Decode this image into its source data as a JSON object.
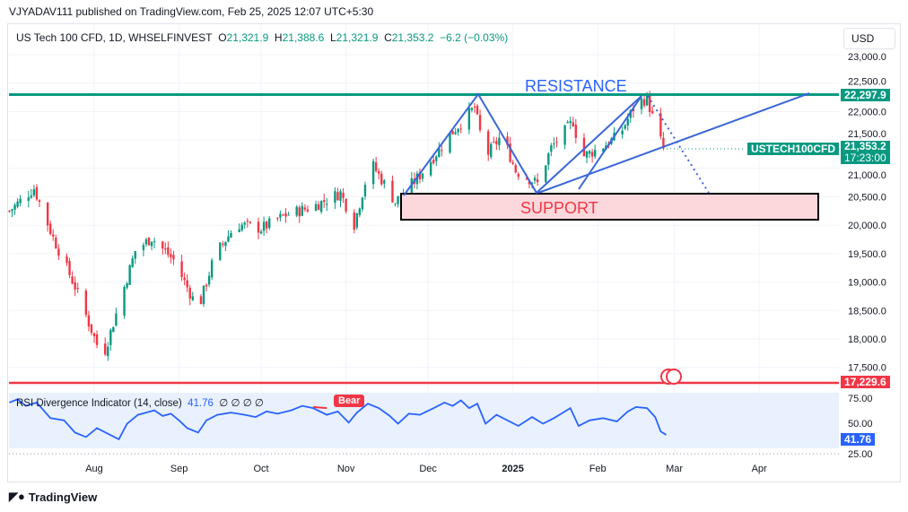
{
  "publish_line": "VJYADAV111 published on TradingView.com, Feb 25, 2025 12:07 UTC+5:30",
  "legend": {
    "symbol": "US Tech 100 CFD, 1D, WHSELFINVEST",
    "o_label": "O",
    "o": "21,321.9",
    "h_label": "H",
    "h": "21,388.6",
    "l_label": "L",
    "l": "21,321.9",
    "c_label": "C",
    "c": "21,353.2",
    "change": "−6.2 (−0.03%)"
  },
  "currency": "USD",
  "price_axis": [
    "23,000.0",
    "22,500.0",
    "22,000.0",
    "21,500.0",
    "21,000.0",
    "20,500.0",
    "20,000.0",
    "19,500.0",
    "19,000.0",
    "18,500.0",
    "18,000.0",
    "17,500.0"
  ],
  "tags": {
    "resistance_price": "22,297.9",
    "symbol_tag": "USTECH100CFD",
    "last_price": "21,353.2",
    "countdown": "17:23:00",
    "low_line_price": "17,229.6",
    "rsi_value": "41.76"
  },
  "annotations": {
    "resistance": "RESISTANCE",
    "support": "SUPPORT"
  },
  "time_axis": [
    "Aug",
    "Sep",
    "Oct",
    "Nov",
    "Dec",
    "2025",
    "Feb",
    "Mar",
    "Apr"
  ],
  "rsi": {
    "title": "RSI Divergence Indicator (14, close)",
    "value": "41.76",
    "placeholders": "∅ ∅ ∅ ∅",
    "bear_label": "Bear",
    "axis": [
      "75.00",
      "50.00",
      "25.00"
    ]
  },
  "footer": "TradingView",
  "colors": {
    "up": "#089981",
    "down": "#f23645",
    "line": "#2962ff",
    "resistance": "#089981"
  },
  "chart_data": {
    "type": "candlestick",
    "x_unit": "days from Aug 1 2024",
    "close_path": [
      [
        -31,
        20250
      ],
      [
        -22,
        20650
      ],
      [
        -15,
        19780
      ],
      [
        -7,
        18920
      ],
      [
        3,
        17650
      ],
      [
        8,
        18440
      ],
      [
        15,
        19550
      ],
      [
        21,
        19780
      ],
      [
        29,
        19390
      ],
      [
        38,
        18520
      ],
      [
        44,
        19470
      ],
      [
        52,
        20020
      ],
      [
        61,
        19940
      ],
      [
        70,
        20180
      ],
      [
        80,
        20330
      ],
      [
        90,
        20570
      ],
      [
        95,
        20020
      ],
      [
        101,
        21120
      ],
      [
        110,
        20410
      ],
      [
        119,
        20880
      ],
      [
        130,
        21590
      ],
      [
        139,
        22070
      ],
      [
        143,
        21200
      ],
      [
        149,
        21590
      ],
      [
        154,
        20960
      ],
      [
        162,
        20730
      ],
      [
        167,
        21360
      ],
      [
        175,
        21830
      ],
      [
        178,
        21200
      ],
      [
        185,
        21360
      ],
      [
        192,
        21590
      ],
      [
        198,
        22150
      ],
      [
        202,
        22230
      ],
      [
        205,
        21750
      ],
      [
        208,
        21353
      ]
    ],
    "levels": {
      "resistance": 22297.9,
      "support_zone": [
        20100,
        20550
      ],
      "low_line": 17229.6
    },
    "rsi_path": [
      [
        -31,
        71
      ],
      [
        -28,
        74
      ],
      [
        -25,
        68
      ],
      [
        -21,
        71
      ],
      [
        -16,
        57
      ],
      [
        -11,
        55
      ],
      [
        -7,
        44
      ],
      [
        -3,
        40
      ],
      [
        1,
        48
      ],
      [
        5,
        43
      ],
      [
        9,
        38
      ],
      [
        12,
        52
      ],
      [
        16,
        60
      ],
      [
        19,
        62
      ],
      [
        22,
        64
      ],
      [
        25,
        59
      ],
      [
        28,
        61
      ],
      [
        31,
        55
      ],
      [
        34,
        48
      ],
      [
        38,
        44
      ],
      [
        41,
        55
      ],
      [
        45,
        60
      ],
      [
        50,
        62
      ],
      [
        55,
        60
      ],
      [
        59,
        58
      ],
      [
        63,
        63
      ],
      [
        67,
        61
      ],
      [
        72,
        64
      ],
      [
        76,
        68
      ],
      [
        80,
        66
      ],
      [
        85,
        60
      ],
      [
        89,
        63
      ],
      [
        93,
        53
      ],
      [
        96,
        62
      ],
      [
        100,
        70
      ],
      [
        104,
        66
      ],
      [
        108,
        59
      ],
      [
        111,
        52
      ],
      [
        115,
        61
      ],
      [
        119,
        60
      ],
      [
        124,
        66
      ],
      [
        128,
        71
      ],
      [
        131,
        68
      ],
      [
        134,
        73
      ],
      [
        137,
        66
      ],
      [
        140,
        70
      ],
      [
        143,
        52
      ],
      [
        147,
        60
      ],
      [
        151,
        55
      ],
      [
        155,
        50
      ],
      [
        160,
        58
      ],
      [
        164,
        52
      ],
      [
        168,
        57
      ],
      [
        172,
        63
      ],
      [
        174,
        66
      ],
      [
        177,
        50
      ],
      [
        181,
        55
      ],
      [
        186,
        57
      ],
      [
        191,
        54
      ],
      [
        195,
        63
      ],
      [
        198,
        67
      ],
      [
        202,
        66
      ],
      [
        205,
        58
      ],
      [
        207,
        45
      ],
      [
        209,
        42
      ]
    ],
    "rsi_range": [
      25,
      75
    ]
  }
}
